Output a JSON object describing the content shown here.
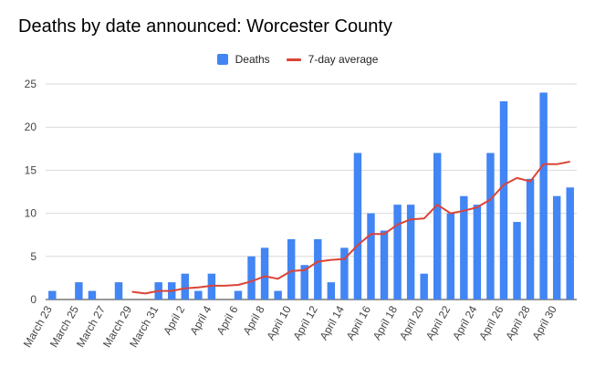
{
  "chart_data": {
    "type": "bar",
    "title": "Deaths by date announced: Worcester County",
    "xlabel": "",
    "ylabel": "",
    "ylim": [
      0,
      25
    ],
    "yticks": [
      0,
      5,
      10,
      15,
      20,
      25
    ],
    "grid": true,
    "legend_position": "top",
    "colors": {
      "bar": "#4285f4",
      "line": "#db4437",
      "grid": "#d9d9d9",
      "axis": "#333333"
    },
    "categories": [
      "March 23",
      "March 24",
      "March 25",
      "March 26",
      "March 27",
      "March 28",
      "March 29",
      "March 30",
      "March 31",
      "April 1",
      "April 2",
      "April 3",
      "April 4",
      "April 5",
      "April 6",
      "April 7",
      "April 8",
      "April 9",
      "April 10",
      "April 11",
      "April 12",
      "April 13",
      "April 14",
      "April 15",
      "April 16",
      "April 17",
      "April 18",
      "April 19",
      "April 20",
      "April 21",
      "April 22",
      "April 23",
      "April 24",
      "April 25",
      "April 26",
      "April 27",
      "April 28",
      "April 29",
      "April 30",
      "May 1"
    ],
    "tick_labels": [
      "March 23",
      "March 25",
      "March 27",
      "March 29",
      "March 31",
      "April 2",
      "April 4",
      "April 6",
      "April 8",
      "April 10",
      "April 12",
      "April 14",
      "April 16",
      "April 18",
      "April 20",
      "April 22",
      "April 24",
      "April 26",
      "April 28",
      "April 30"
    ],
    "series": [
      {
        "name": "Deaths",
        "type": "bar",
        "values": [
          1,
          0,
          2,
          1,
          0,
          2,
          0,
          0,
          2,
          2,
          3,
          1,
          3,
          0,
          1,
          5,
          6,
          1,
          7,
          4,
          7,
          2,
          6,
          17,
          10,
          8,
          11,
          11,
          3,
          17,
          10,
          12,
          11,
          17,
          23,
          9,
          14,
          24,
          12,
          13
        ]
      },
      {
        "name": "7-day average",
        "type": "line",
        "values": [
          null,
          null,
          null,
          null,
          null,
          null,
          0.9,
          0.7,
          1.0,
          1.0,
          1.3,
          1.4,
          1.6,
          1.6,
          1.7,
          2.1,
          2.7,
          2.4,
          3.3,
          3.4,
          4.4,
          4.6,
          4.7,
          6.3,
          7.6,
          7.6,
          8.7,
          9.3,
          9.4,
          11.0,
          10.0,
          10.3,
          10.7,
          11.6,
          13.3,
          14.1,
          13.7,
          15.7,
          15.7,
          16.0
        ]
      }
    ]
  }
}
